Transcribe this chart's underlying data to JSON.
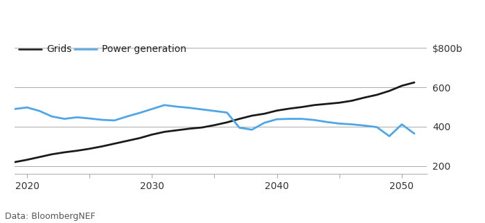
{
  "grids_x": [
    2019,
    2020,
    2021,
    2022,
    2023,
    2024,
    2025,
    2026,
    2027,
    2028,
    2029,
    2030,
    2031,
    2032,
    2033,
    2034,
    2035,
    2036,
    2037,
    2038,
    2039,
    2040,
    2041,
    2042,
    2043,
    2044,
    2045,
    2046,
    2047,
    2048,
    2049,
    2050,
    2051
  ],
  "grids_y": [
    220,
    232,
    246,
    260,
    270,
    278,
    288,
    300,
    314,
    328,
    342,
    360,
    374,
    382,
    390,
    396,
    408,
    422,
    440,
    456,
    466,
    482,
    492,
    500,
    510,
    516,
    522,
    532,
    548,
    562,
    582,
    608,
    625
  ],
  "power_x": [
    2019,
    2020,
    2021,
    2022,
    2023,
    2024,
    2025,
    2026,
    2027,
    2028,
    2029,
    2030,
    2031,
    2032,
    2033,
    2034,
    2035,
    2036,
    2037,
    2038,
    2039,
    2040,
    2041,
    2042,
    2043,
    2044,
    2045,
    2046,
    2047,
    2048,
    2049,
    2050,
    2051
  ],
  "power_y": [
    490,
    498,
    480,
    452,
    440,
    448,
    442,
    435,
    432,
    452,
    470,
    490,
    510,
    502,
    496,
    488,
    480,
    472,
    395,
    385,
    420,
    438,
    440,
    440,
    434,
    424,
    416,
    412,
    406,
    398,
    352,
    412,
    365
  ],
  "grids_color": "#1a1a1a",
  "power_color": "#4da6e8",
  "xlim": [
    2019.0,
    2052.0
  ],
  "ylim": [
    160,
    840
  ],
  "yticks": [
    200,
    400,
    600,
    800
  ],
  "ytick_labels": [
    "200",
    "400",
    "600",
    "$800b"
  ],
  "xticks": [
    2020,
    2025,
    2030,
    2035,
    2040,
    2045,
    2050
  ],
  "xtick_labels": [
    "2020",
    "",
    "2030",
    "",
    "2040",
    "",
    "2050"
  ],
  "legend_grids": "Grids",
  "legend_power": "Power generation",
  "source": "Data: BloombergNEF",
  "bg_color": "#ffffff",
  "line_width": 2.0,
  "grid_color": "#aaaaaa",
  "grid_lw": 0.7
}
